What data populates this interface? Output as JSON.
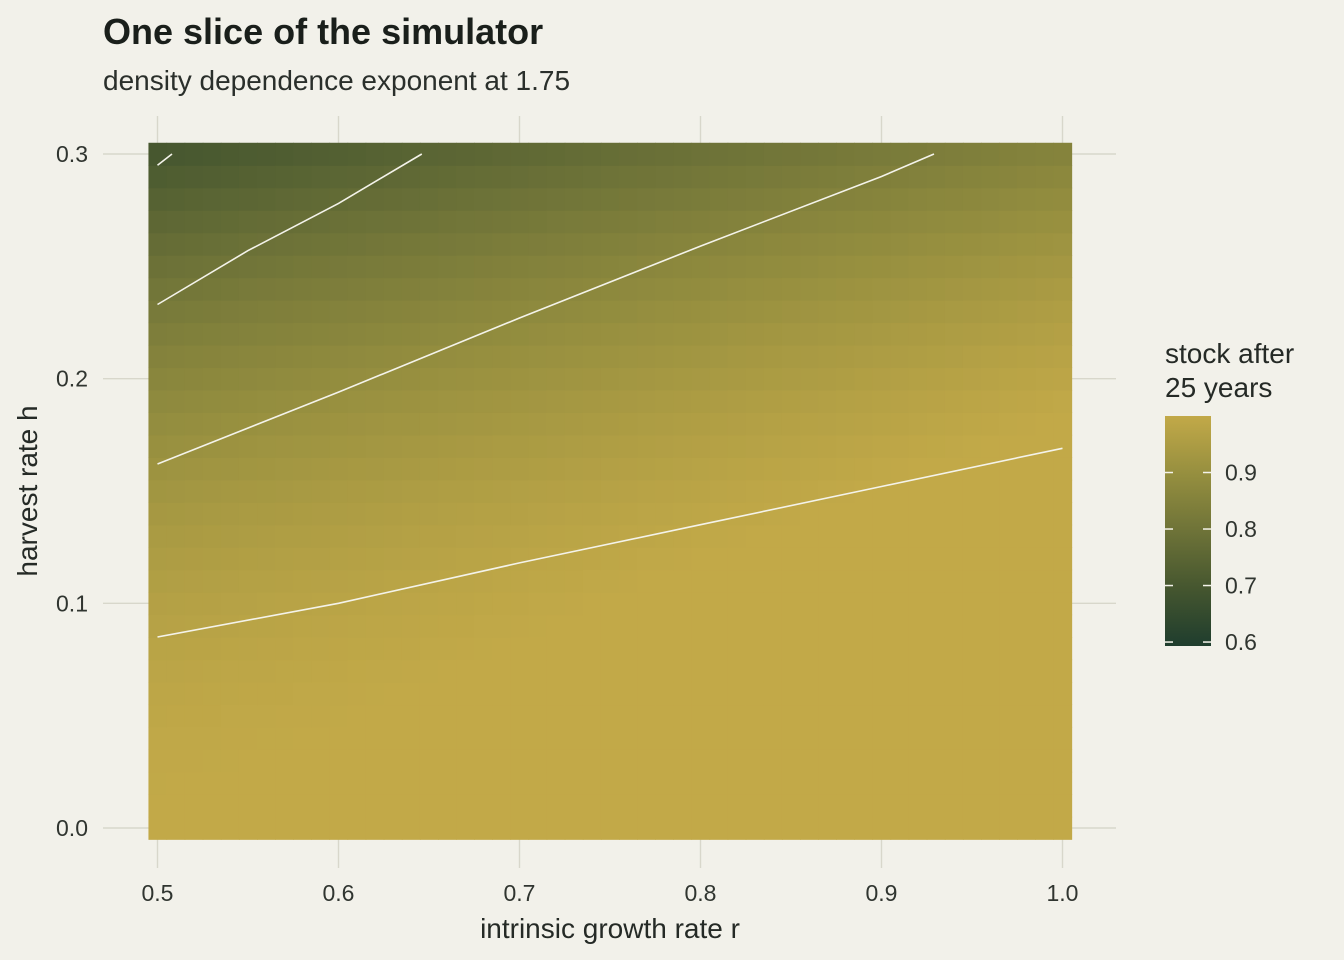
{
  "chart_data": {
    "type": "heatmap",
    "title": "One slice of the simulator",
    "subtitle": "density dependence exponent at 1.75",
    "xlabel": "intrinsic growth rate r",
    "ylabel": "harvest rate h",
    "xlim": [
      0.5,
      1.0
    ],
    "ylim": [
      0.0,
      0.3
    ],
    "x_ticks": [
      "0.5",
      "0.6",
      "0.7",
      "0.8",
      "0.9",
      "1.0"
    ],
    "x_tick_values": [
      0.5,
      0.6,
      0.7,
      0.8,
      0.9,
      1.0
    ],
    "y_ticks": [
      "0.0",
      "0.1",
      "0.2",
      "0.3"
    ],
    "y_tick_values": [
      0.0,
      0.1,
      0.2,
      0.3
    ],
    "grid": true,
    "legend": {
      "title_line1": "stock after",
      "title_line2": "25 years",
      "position": "right",
      "ticks": [
        "0.6",
        "0.7",
        "0.8",
        "0.9"
      ],
      "tick_values": [
        0.6,
        0.7,
        0.8,
        0.9
      ],
      "range": [
        0.593,
        1.0
      ]
    },
    "color_scale": {
      "low": "#1f3d2e",
      "high": "#c2a948"
    },
    "contours": [
      {
        "points": [
          [
            0.5,
            0.295
          ],
          [
            0.508,
            0.3
          ]
        ]
      },
      {
        "points": [
          [
            0.5,
            0.233
          ],
          [
            0.55,
            0.257
          ],
          [
            0.6,
            0.278
          ],
          [
            0.646,
            0.3
          ]
        ]
      },
      {
        "points": [
          [
            0.5,
            0.162
          ],
          [
            0.6,
            0.194
          ],
          [
            0.7,
            0.227
          ],
          [
            0.8,
            0.259
          ],
          [
            0.9,
            0.29
          ],
          [
            0.929,
            0.3
          ]
        ]
      },
      {
        "points": [
          [
            0.5,
            0.085
          ],
          [
            0.6,
            0.1
          ],
          [
            0.7,
            0.118
          ],
          [
            0.8,
            0.135
          ],
          [
            0.9,
            0.152
          ],
          [
            1.0,
            0.169
          ]
        ]
      }
    ]
  }
}
